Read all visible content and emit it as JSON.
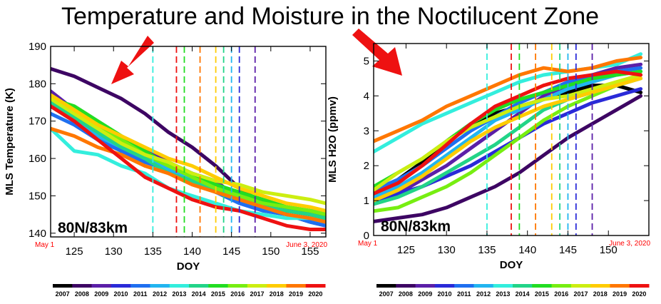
{
  "title": "Temperature and Moisture in the Noctilucent Zone",
  "arrow_color": "#ee1111",
  "chart_data": [
    {
      "type": "line",
      "xlabel": "DOY",
      "ylabel": "MLS Temperature (K)",
      "xlim": [
        122,
        157
      ],
      "ylim": [
        139,
        190
      ],
      "xticks": [
        125,
        130,
        135,
        140,
        145,
        150,
        155
      ],
      "yticks": [
        140,
        150,
        160,
        170,
        180,
        190
      ],
      "start_note": "May 1",
      "end_note": "June 3, 2020",
      "region_label": "80N/83km",
      "grid": false,
      "series": [
        {
          "name": "2007",
          "color": "#000000",
          "x": [
            122,
            125,
            128,
            131,
            134,
            137,
            140,
            143,
            146,
            149,
            152,
            155,
            157
          ],
          "y": [
            174,
            170,
            165,
            162,
            160,
            157,
            155,
            151,
            149,
            147,
            146,
            145,
            144
          ]
        },
        {
          "name": "2008",
          "color": "#3d0563",
          "x": [
            122,
            125,
            128,
            131,
            134,
            137,
            140,
            143,
            146,
            149,
            152,
            155,
            157
          ],
          "y": [
            184,
            182,
            179,
            176,
            172,
            167,
            163,
            158,
            152,
            148,
            145,
            143,
            142
          ]
        },
        {
          "name": "2009",
          "color": "#5b1fa8",
          "x": [
            122,
            125,
            128,
            131,
            134,
            137,
            140,
            143,
            146,
            149,
            152,
            155,
            157
          ],
          "y": [
            178,
            173,
            169,
            165,
            162,
            159,
            156,
            154,
            149,
            147,
            146,
            145,
            145
          ]
        },
        {
          "name": "2010",
          "color": "#2a2ad8",
          "x": [
            122,
            125,
            128,
            131,
            134,
            137,
            140,
            143,
            146,
            149,
            152,
            155,
            157
          ],
          "y": [
            175,
            172,
            167,
            163,
            160,
            158,
            156,
            152,
            149,
            147,
            147,
            146,
            146
          ]
        },
        {
          "name": "2011",
          "color": "#1f6ff0",
          "x": [
            122,
            125,
            128,
            131,
            134,
            137,
            140,
            143,
            146,
            149,
            152,
            155,
            157
          ],
          "y": [
            172,
            169,
            165,
            162,
            159,
            157,
            154,
            151,
            148,
            146,
            145,
            143,
            142
          ]
        },
        {
          "name": "2012",
          "color": "#22b5f0",
          "x": [
            122,
            125,
            128,
            131,
            134,
            137,
            140,
            143,
            146,
            149,
            152,
            155,
            157
          ],
          "y": [
            174,
            171,
            166,
            163,
            160,
            157,
            155,
            152,
            150,
            148,
            147,
            146,
            146
          ]
        },
        {
          "name": "2013",
          "color": "#33eedd",
          "x": [
            122,
            125,
            128,
            131,
            134,
            137,
            140,
            143,
            146,
            149,
            152,
            155,
            157
          ],
          "y": [
            168,
            162,
            161,
            158,
            156,
            152,
            150,
            148,
            146,
            145,
            144,
            144,
            143
          ]
        },
        {
          "name": "2014",
          "color": "#22d488",
          "x": [
            122,
            125,
            128,
            131,
            134,
            137,
            140,
            143,
            146,
            149,
            152,
            155,
            157
          ],
          "y": [
            175,
            171,
            167,
            163,
            160,
            156,
            154,
            151,
            149,
            147,
            146,
            145,
            144
          ]
        },
        {
          "name": "2015",
          "color": "#22dd22",
          "x": [
            122,
            125,
            128,
            131,
            134,
            137,
            140,
            143,
            146,
            149,
            152,
            155,
            157
          ],
          "y": [
            176,
            174,
            170,
            166,
            162,
            158,
            156,
            153,
            151,
            149,
            147,
            146,
            145
          ]
        },
        {
          "name": "2016",
          "color": "#77ee11",
          "x": [
            122,
            125,
            128,
            131,
            134,
            137,
            140,
            143,
            146,
            149,
            152,
            155,
            157
          ],
          "y": [
            177,
            173,
            169,
            165,
            161,
            158,
            155,
            152,
            150,
            148,
            147,
            146,
            145
          ]
        },
        {
          "name": "2017",
          "color": "#ccee11",
          "x": [
            122,
            125,
            128,
            131,
            134,
            137,
            140,
            143,
            146,
            149,
            152,
            155,
            157
          ],
          "y": [
            176,
            172,
            168,
            164,
            161,
            159,
            156,
            154,
            153,
            151,
            150,
            149,
            148
          ]
        },
        {
          "name": "2018",
          "color": "#ffcc00",
          "x": [
            122,
            125,
            128,
            131,
            134,
            137,
            140,
            143,
            146,
            149,
            152,
            155,
            157
          ],
          "y": [
            177,
            173,
            169,
            166,
            163,
            160,
            158,
            155,
            152,
            150,
            148,
            147,
            146
          ]
        },
        {
          "name": "2019",
          "color": "#ff7700",
          "x": [
            122,
            125,
            128,
            131,
            134,
            137,
            140,
            143,
            146,
            149,
            152,
            155,
            157
          ],
          "y": [
            168,
            166,
            163,
            161,
            158,
            156,
            153,
            151,
            149,
            147,
            145,
            144,
            143
          ]
        },
        {
          "name": "2020",
          "color": "#ee1111",
          "x": [
            122,
            125,
            128,
            131,
            134,
            137,
            140,
            143,
            146,
            149,
            152,
            155,
            157
          ],
          "y": [
            174,
            170,
            165,
            160,
            155,
            152,
            149,
            147,
            146,
            144,
            142,
            141,
            141
          ]
        }
      ],
      "markers": [
        {
          "x": 135,
          "color": "#33eedd"
        },
        {
          "x": 138,
          "color": "#ee1111"
        },
        {
          "x": 139,
          "color": "#22dd22"
        },
        {
          "x": 141,
          "color": "#ff7700"
        },
        {
          "x": 143,
          "color": "#ffcc00"
        },
        {
          "x": 144,
          "color": "#22d488"
        },
        {
          "x": 145,
          "color": "#22b5f0"
        },
        {
          "x": 146,
          "color": "#2a2ad8"
        },
        {
          "x": 148,
          "color": "#5b1fa8"
        }
      ]
    },
    {
      "type": "line",
      "xlabel": "DOY",
      "ylabel": "MLS H2O (ppmv)",
      "xlim": [
        121,
        155
      ],
      "ylim": [
        0,
        5.5
      ],
      "xticks": [
        125,
        130,
        135,
        140,
        145,
        150
      ],
      "yticks": [
        0,
        1,
        2,
        3,
        4,
        5
      ],
      "start_note": "May 1",
      "end_note": "June 3, 2020",
      "region_label": "80N/83km",
      "grid": false,
      "series": [
        {
          "name": "2007",
          "color": "#000000",
          "x": [
            121,
            124,
            127,
            130,
            133,
            136,
            139,
            142,
            145,
            148,
            151,
            154
          ],
          "y": [
            1.2,
            1.6,
            2.1,
            2.7,
            3.2,
            3.5,
            3.7,
            3.9,
            4.1,
            4.3,
            4.3,
            4.1
          ]
        },
        {
          "name": "2008",
          "color": "#3d0563",
          "x": [
            121,
            124,
            127,
            130,
            133,
            136,
            139,
            142,
            145,
            148,
            151,
            154
          ],
          "y": [
            0.4,
            0.5,
            0.6,
            0.8,
            1.1,
            1.4,
            1.8,
            2.3,
            2.8,
            3.2,
            3.6,
            4.0
          ]
        },
        {
          "name": "2009",
          "color": "#5b1fa8",
          "x": [
            121,
            124,
            127,
            130,
            133,
            136,
            139,
            142,
            145,
            148,
            151,
            154
          ],
          "y": [
            0.9,
            1.2,
            1.6,
            2.0,
            2.5,
            3.0,
            3.5,
            4.0,
            4.3,
            4.6,
            4.8,
            4.9
          ]
        },
        {
          "name": "2010",
          "color": "#2a2ad8",
          "x": [
            121,
            124,
            127,
            130,
            133,
            136,
            139,
            142,
            145,
            148,
            151,
            154
          ],
          "y": [
            1.0,
            1.2,
            1.4,
            1.7,
            2.0,
            2.4,
            2.8,
            3.2,
            3.5,
            3.8,
            4.0,
            4.2
          ]
        },
        {
          "name": "2011",
          "color": "#1f6ff0",
          "x": [
            121,
            124,
            127,
            130,
            133,
            136,
            139,
            142,
            145,
            148,
            151,
            154
          ],
          "y": [
            1.3,
            1.6,
            2.0,
            2.5,
            3.0,
            3.4,
            3.8,
            4.1,
            4.4,
            4.6,
            4.7,
            4.8
          ]
        },
        {
          "name": "2012",
          "color": "#22b5f0",
          "x": [
            121,
            124,
            127,
            130,
            133,
            136,
            139,
            142,
            145,
            148,
            151,
            154
          ],
          "y": [
            1.1,
            1.4,
            1.8,
            2.3,
            2.8,
            3.3,
            3.6,
            3.9,
            4.2,
            4.4,
            4.6,
            4.7
          ]
        },
        {
          "name": "2013",
          "color": "#33eedd",
          "x": [
            121,
            124,
            127,
            130,
            133,
            136,
            139,
            142,
            145,
            148,
            151,
            154
          ],
          "y": [
            2.4,
            2.8,
            3.2,
            3.5,
            3.8,
            4.1,
            4.4,
            4.6,
            4.7,
            4.8,
            4.9,
            5.2
          ]
        },
        {
          "name": "2014",
          "color": "#22d488",
          "x": [
            121,
            124,
            127,
            130,
            133,
            136,
            139,
            142,
            145,
            148,
            151,
            154
          ],
          "y": [
            0.9,
            1.1,
            1.4,
            1.8,
            2.2,
            2.6,
            3.1,
            3.6,
            3.9,
            4.1,
            4.3,
            4.5
          ]
        },
        {
          "name": "2015",
          "color": "#22dd22",
          "x": [
            121,
            124,
            127,
            130,
            133,
            136,
            139,
            142,
            145,
            148,
            151,
            154
          ],
          "y": [
            1.4,
            1.8,
            2.2,
            2.7,
            3.2,
            3.6,
            3.9,
            4.1,
            4.3,
            4.5,
            4.6,
            4.7
          ]
        },
        {
          "name": "2016",
          "color": "#77ee11",
          "x": [
            121,
            124,
            127,
            130,
            133,
            136,
            139,
            142,
            145,
            148,
            151,
            154
          ],
          "y": [
            0.7,
            0.8,
            1.1,
            1.4,
            1.8,
            2.3,
            2.8,
            3.3,
            3.7,
            4.0,
            4.3,
            4.6
          ]
        },
        {
          "name": "2017",
          "color": "#ccee11",
          "x": [
            121,
            124,
            127,
            130,
            133,
            136,
            139,
            142,
            145,
            148,
            151,
            154
          ],
          "y": [
            1.3,
            1.8,
            2.2,
            2.7,
            3.1,
            3.4,
            3.7,
            3.9,
            4.0,
            4.2,
            4.4,
            4.6
          ]
        },
        {
          "name": "2018",
          "color": "#ffcc00",
          "x": [
            121,
            124,
            127,
            130,
            133,
            136,
            139,
            142,
            145,
            148,
            151,
            154
          ],
          "y": [
            1.0,
            1.3,
            1.7,
            2.2,
            2.7,
            3.1,
            3.4,
            3.7,
            3.9,
            4.1,
            4.3,
            4.5
          ]
        },
        {
          "name": "2019",
          "color": "#ff7700",
          "x": [
            121,
            124,
            127,
            130,
            133,
            136,
            139,
            142,
            145,
            148,
            151,
            154
          ],
          "y": [
            2.7,
            3.0,
            3.3,
            3.7,
            4.0,
            4.3,
            4.6,
            4.8,
            4.7,
            4.8,
            5.0,
            5.1
          ]
        },
        {
          "name": "2020",
          "color": "#ee1111",
          "x": [
            121,
            124,
            127,
            130,
            133,
            136,
            139,
            142,
            145,
            148,
            151,
            154
          ],
          "y": [
            1.2,
            1.5,
            2.0,
            2.6,
            3.2,
            3.7,
            4.0,
            4.3,
            4.5,
            4.6,
            4.7,
            4.6
          ]
        }
      ],
      "markers": [
        {
          "x": 135,
          "color": "#33eedd"
        },
        {
          "x": 138,
          "color": "#ee1111"
        },
        {
          "x": 139,
          "color": "#22dd22"
        },
        {
          "x": 141,
          "color": "#ff7700"
        },
        {
          "x": 143,
          "color": "#ffcc00"
        },
        {
          "x": 144,
          "color": "#22d488"
        },
        {
          "x": 145,
          "color": "#22b5f0"
        },
        {
          "x": 146,
          "color": "#2a2ad8"
        },
        {
          "x": 148,
          "color": "#5b1fa8"
        }
      ]
    }
  ],
  "colorbar": {
    "years": [
      "2007",
      "2008",
      "2009",
      "2010",
      "2011",
      "2012",
      "2013",
      "2014",
      "2015",
      "2016",
      "2017",
      "2018",
      "2019",
      "2020"
    ],
    "colors": [
      "#000000",
      "#3d0563",
      "#5b1fa8",
      "#2a2ad8",
      "#1f6ff0",
      "#22b5f0",
      "#33eedd",
      "#22d488",
      "#22dd22",
      "#77ee11",
      "#ccee11",
      "#ffcc00",
      "#ff7700",
      "#ee1111"
    ]
  }
}
